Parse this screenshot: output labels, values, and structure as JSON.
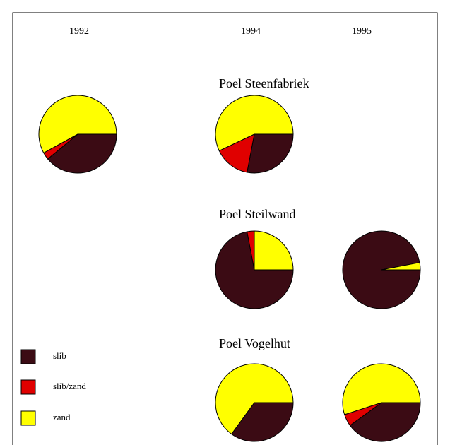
{
  "chart_data": {
    "type": "pie",
    "years": [
      "1992",
      "1994",
      "1995"
    ],
    "legend": [
      {
        "name": "slib",
        "color": "#3b0b14"
      },
      {
        "name": "slib/zand",
        "color": "#e00000"
      },
      {
        "name": "zand",
        "color": "#ffff00"
      }
    ],
    "groups": [
      {
        "title": "Poel Steenfabriek",
        "values": [
          [
            39,
            3,
            58
          ],
          [
            28,
            15,
            57
          ],
          null
        ]
      },
      {
        "title": "Poel Steilwand",
        "values": [
          null,
          [
            72,
            3,
            25
          ],
          [
            97,
            0,
            3
          ]
        ]
      },
      {
        "title": "Poel Vogelhut",
        "values": [
          null,
          [
            35,
            0,
            65
          ],
          [
            40,
            5,
            55
          ]
        ]
      }
    ]
  }
}
